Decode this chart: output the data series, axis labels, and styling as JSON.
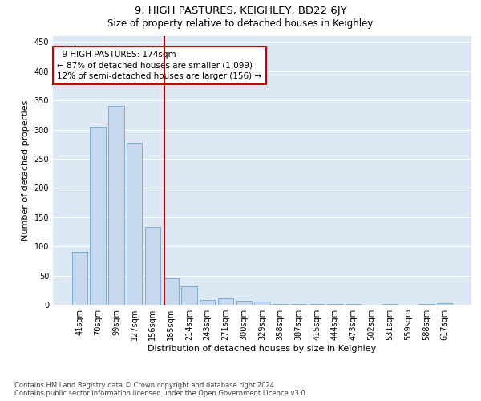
{
  "title": "9, HIGH PASTURES, KEIGHLEY, BD22 6JY",
  "subtitle": "Size of property relative to detached houses in Keighley",
  "xlabel": "Distribution of detached houses by size in Keighley",
  "ylabel": "Number of detached properties",
  "footer": "Contains HM Land Registry data © Crown copyright and database right 2024.\nContains public sector information licensed under the Open Government Licence v3.0.",
  "categories": [
    "41sqm",
    "70sqm",
    "99sqm",
    "127sqm",
    "156sqm",
    "185sqm",
    "214sqm",
    "243sqm",
    "271sqm",
    "300sqm",
    "329sqm",
    "358sqm",
    "387sqm",
    "415sqm",
    "444sqm",
    "473sqm",
    "502sqm",
    "531sqm",
    "559sqm",
    "588sqm",
    "617sqm"
  ],
  "values": [
    91,
    305,
    341,
    277,
    133,
    46,
    31,
    8,
    11,
    7,
    5,
    2,
    2,
    1,
    1,
    1,
    0,
    1,
    0,
    1,
    3
  ],
  "bar_color": "#c5d8ed",
  "bar_edge_color": "#7aaed6",
  "vline_x": 4.62,
  "vline_color": "#cc0000",
  "annotation_text": "  9 HIGH PASTURES: 174sqm\n← 87% of detached houses are smaller (1,099)\n12% of semi-detached houses are larger (156) →",
  "annotation_box_color": "#cc0000",
  "annotation_text_color": "#000000",
  "ylim": [
    0,
    460
  ],
  "yticks": [
    0,
    50,
    100,
    150,
    200,
    250,
    300,
    350,
    400,
    450
  ],
  "grid_color": "#ffffff",
  "background_color": "#dce9f5",
  "title_fontsize": 9.5,
  "subtitle_fontsize": 8.5,
  "tick_fontsize": 7,
  "ylabel_fontsize": 8,
  "xlabel_fontsize": 8,
  "annotation_fontsize": 7.5,
  "footer_fontsize": 6
}
